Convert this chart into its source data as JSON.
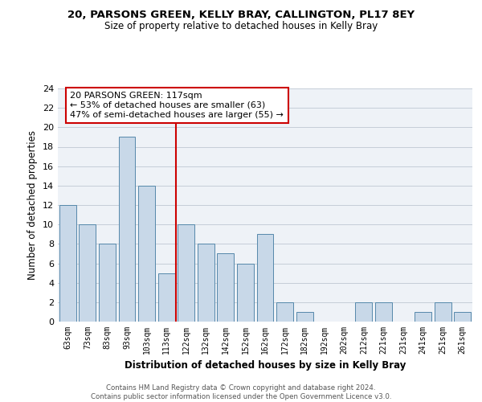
{
  "title1": "20, PARSONS GREEN, KELLY BRAY, CALLINGTON, PL17 8EY",
  "title2": "Size of property relative to detached houses in Kelly Bray",
  "xlabel": "Distribution of detached houses by size in Kelly Bray",
  "ylabel": "Number of detached properties",
  "categories": [
    "63sqm",
    "73sqm",
    "83sqm",
    "93sqm",
    "103sqm",
    "113sqm",
    "122sqm",
    "132sqm",
    "142sqm",
    "152sqm",
    "162sqm",
    "172sqm",
    "182sqm",
    "192sqm",
    "202sqm",
    "212sqm",
    "221sqm",
    "231sqm",
    "241sqm",
    "251sqm",
    "261sqm"
  ],
  "values": [
    12,
    10,
    8,
    19,
    14,
    5,
    10,
    8,
    7,
    6,
    9,
    2,
    1,
    0,
    0,
    2,
    2,
    0,
    1,
    2,
    1
  ],
  "bar_color": "#c8d8e8",
  "bar_edge_color": "#5588aa",
  "vline_x": 5.5,
  "vline_color": "#cc0000",
  "annotation_title": "20 PARSONS GREEN: 117sqm",
  "annotation_line1": "← 53% of detached houses are smaller (63)",
  "annotation_line2": "47% of semi-detached houses are larger (55) →",
  "annotation_box_color": "#ffffff",
  "annotation_box_edge": "#cc0000",
  "ylim": [
    0,
    24
  ],
  "yticks": [
    0,
    2,
    4,
    6,
    8,
    10,
    12,
    14,
    16,
    18,
    20,
    22,
    24
  ],
  "footer1": "Contains HM Land Registry data © Crown copyright and database right 2024.",
  "footer2": "Contains public sector information licensed under the Open Government Licence v3.0.",
  "background_color": "#eef2f7",
  "grid_color": "#c5cdd8"
}
